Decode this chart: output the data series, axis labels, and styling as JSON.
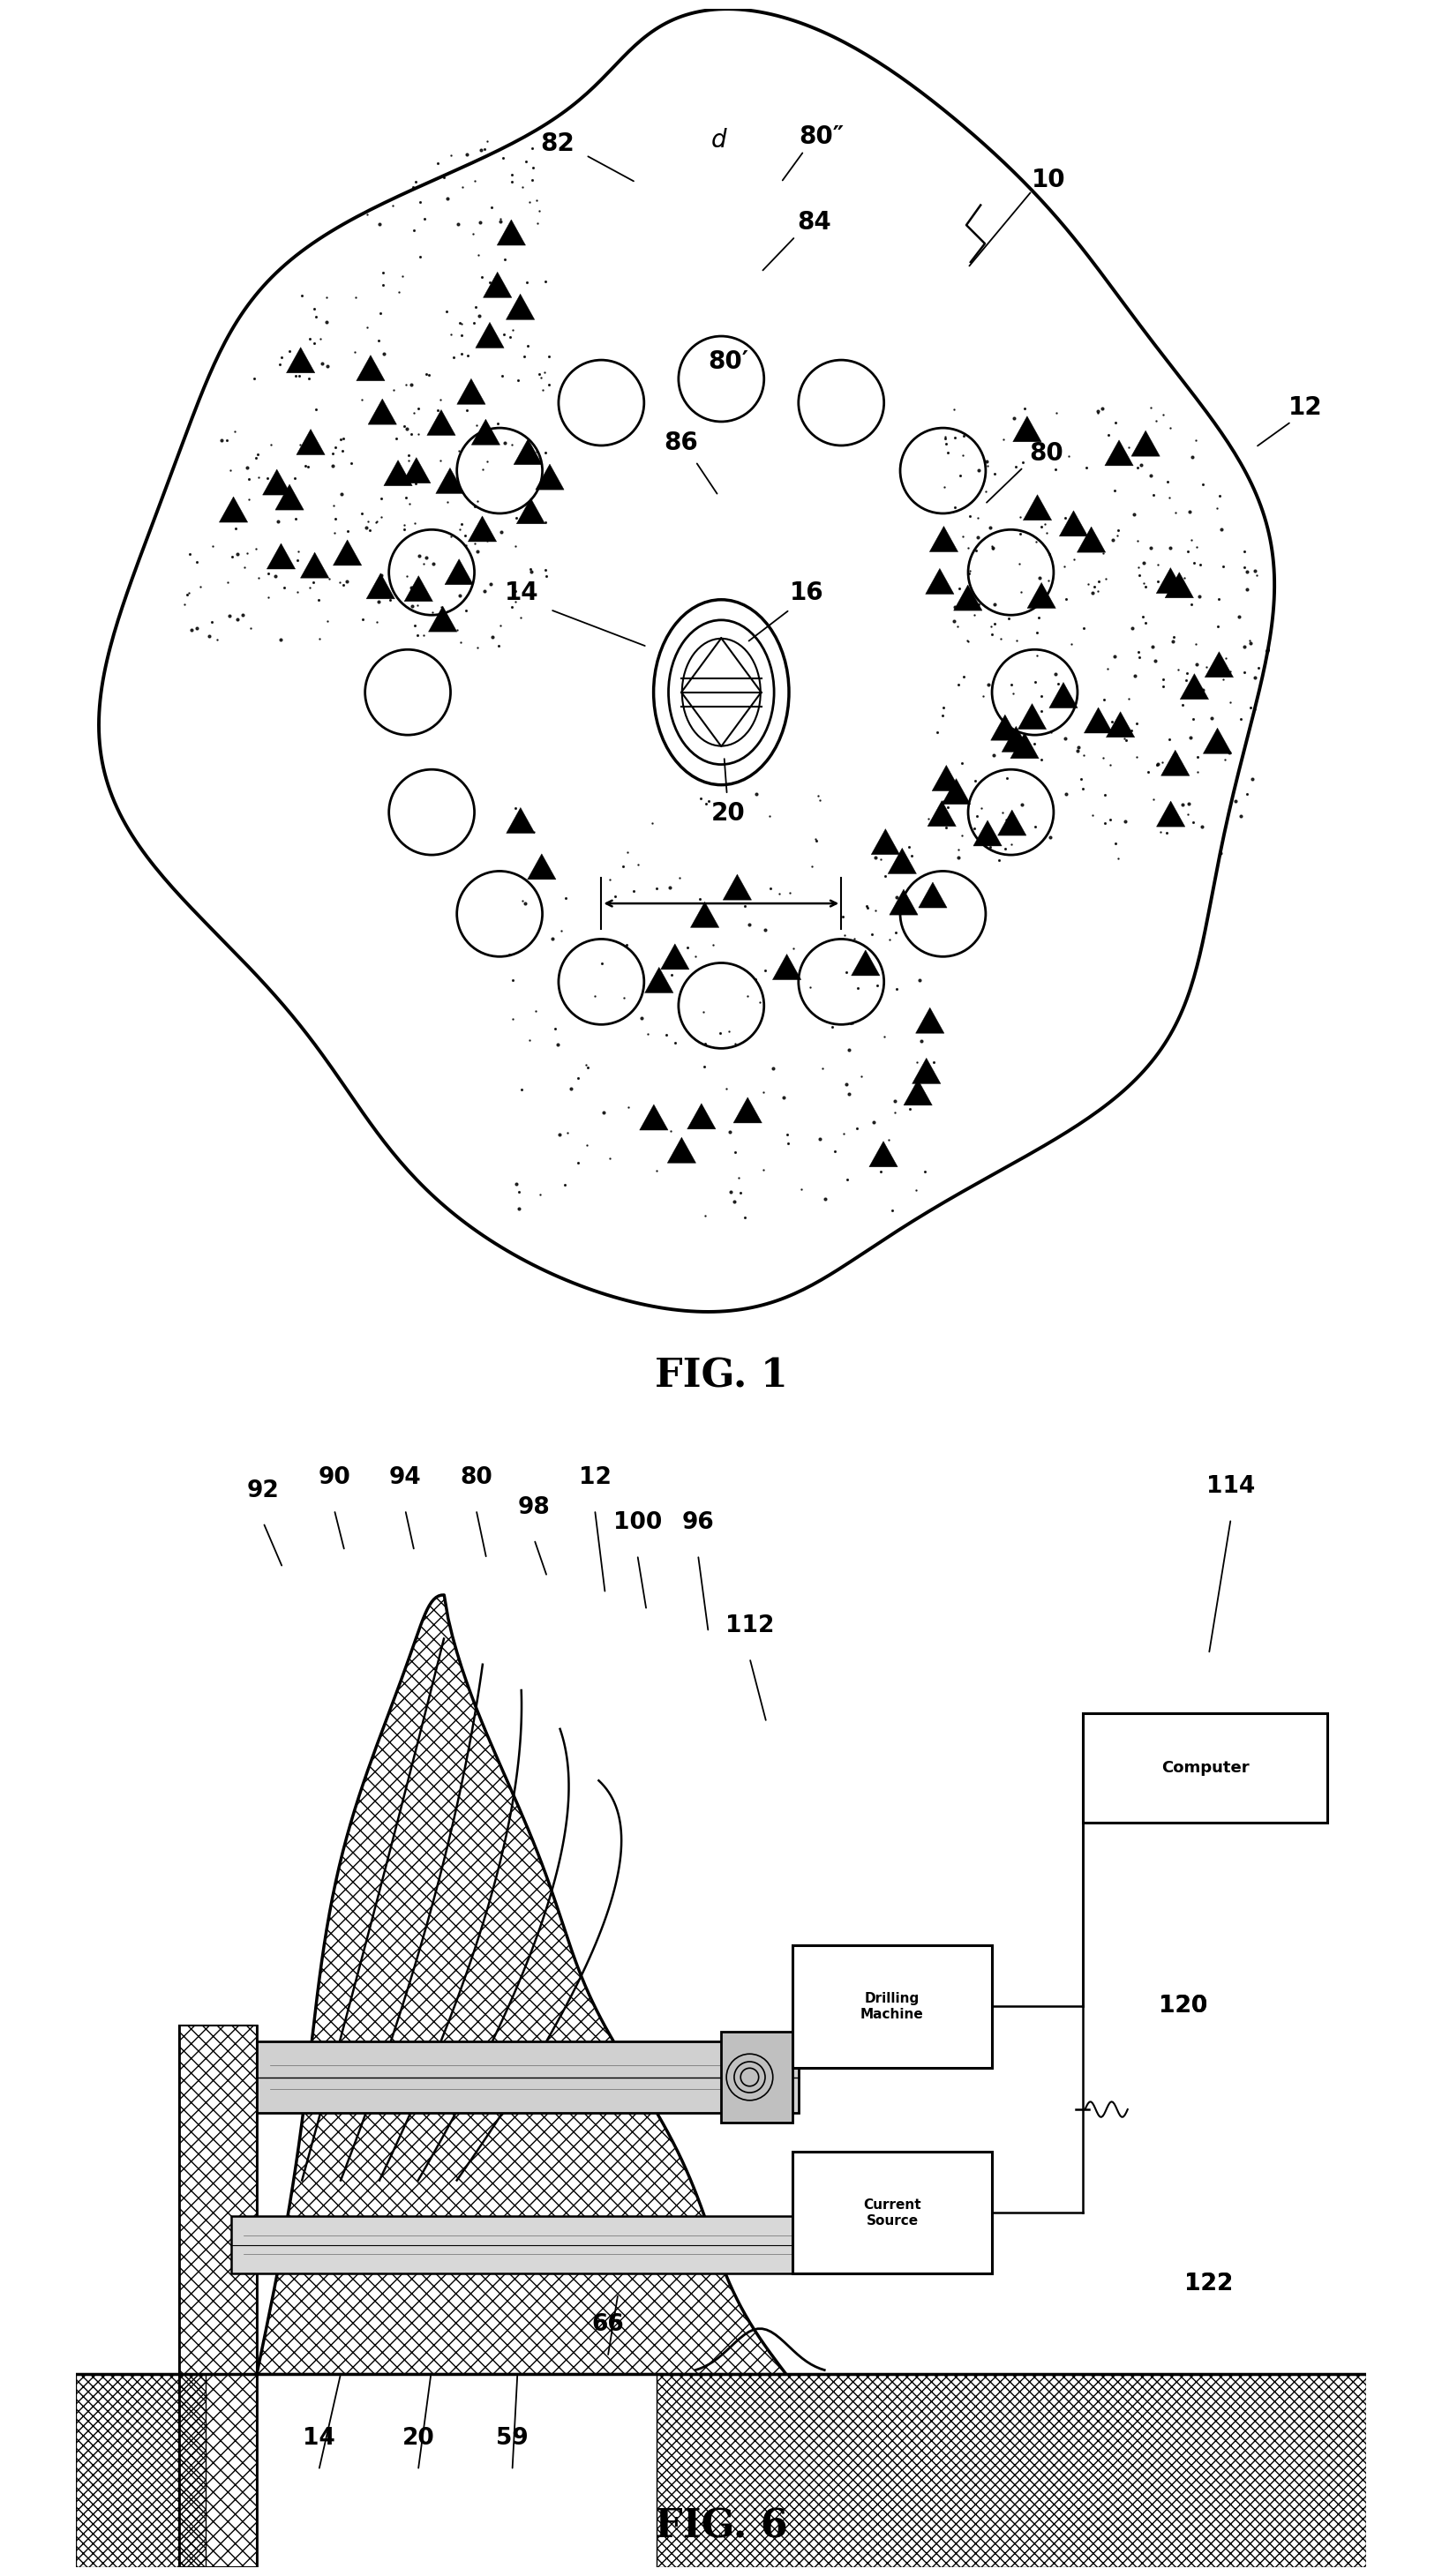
{
  "fig_width": 22.06,
  "fig_height": 29.9,
  "bg_color": "#ffffff"
}
